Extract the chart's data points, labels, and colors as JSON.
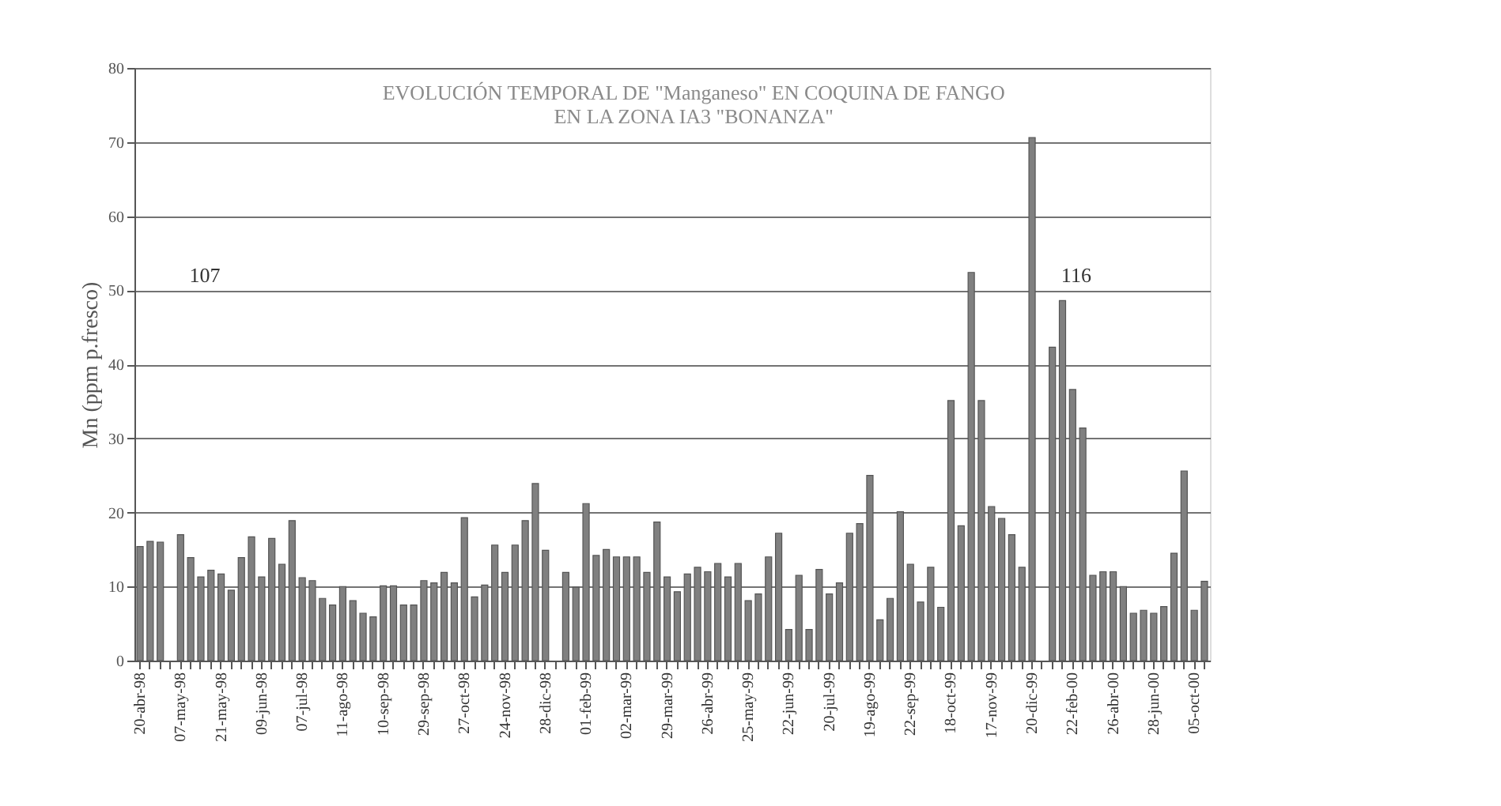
{
  "chart_data": {
    "type": "bar",
    "title": "EVOLUCIÓN TEMPORAL DE \"Manganeso\" EN COQUINA DE FANGO\nEN LA ZONA IA3 \"BONANZA\"",
    "ylabel": "Mn (ppm p.fresco)",
    "categories": [
      "20-abr-98",
      null,
      null,
      null,
      "07-may-98",
      null,
      null,
      null,
      "21-may-98",
      null,
      null,
      null,
      "09-jun-98",
      null,
      null,
      null,
      "07-jul-98",
      null,
      null,
      null,
      "11-ago-98",
      null,
      null,
      null,
      "10-sep-98",
      null,
      null,
      null,
      "29-sep-98",
      null,
      null,
      null,
      "27-oct-98",
      null,
      null,
      null,
      "24-nov-98",
      null,
      null,
      null,
      "28-dic-98",
      null,
      null,
      null,
      "01-feb-99",
      null,
      null,
      null,
      "02-mar-99",
      null,
      null,
      null,
      "29-mar-99",
      null,
      null,
      null,
      "26-abr-99",
      null,
      null,
      null,
      "25-may-99",
      null,
      null,
      null,
      "22-jun-99",
      null,
      null,
      null,
      "20-jul-99",
      null,
      null,
      null,
      "19-ago-99",
      null,
      null,
      null,
      "22-sep-99",
      null,
      null,
      null,
      "18-oct-99",
      null,
      null,
      null,
      "17-nov-99",
      null,
      null,
      null,
      "20-dic-99",
      null,
      null,
      null,
      "22-feb-00",
      null,
      null,
      null,
      "26-abr-00",
      null,
      null,
      null,
      "28-jun-00",
      null,
      null,
      null,
      "05-oct-00",
      null
    ],
    "values": [
      15.4,
      16.1,
      16,
      null,
      17,
      13.9,
      11.3,
      12.2,
      11.7,
      9.5,
      13.9,
      16.7,
      11.3,
      16.5,
      13,
      18.9,
      11.2,
      10.8,
      8.4,
      7.5,
      10,
      8.1,
      6.4,
      5.9,
      10.1,
      10.1,
      7.5,
      7.5,
      10.8,
      10.5,
      11.9,
      10.5,
      19.3,
      8.6,
      10.2,
      15.6,
      11.9,
      15.6,
      18.9,
      23.9,
      14.9,
      null,
      11.9,
      9.9,
      21.2,
      14.2,
      15,
      14,
      14,
      14,
      11.9,
      18.7,
      11.3,
      9.3,
      11.7,
      12.6,
      12,
      13.1,
      11.3,
      13.1,
      8.1,
      9,
      14,
      17.2,
      4.2,
      11.5,
      4.2,
      12.3,
      9,
      10.5,
      17.2,
      18.5,
      25,
      5.5,
      8.4,
      20.1,
      13,
      7.9,
      12.6,
      7.2,
      35.1,
      18.2,
      52.4,
      35.1,
      20.8,
      19.2,
      17,
      12.6,
      70.6,
      null,
      42.3,
      48.6,
      36.6,
      31.4,
      11.5,
      12,
      12,
      10,
      6.4,
      6.8,
      6.4,
      7.3,
      14.5,
      25.6,
      6.8,
      10.7
    ],
    "color": "#808080",
    "ylim": [
      0,
      80
    ],
    "yticks": [
      0,
      10,
      20,
      30,
      40,
      50,
      60,
      70,
      80
    ],
    "grid": "y",
    "value_labels": [
      null,
      null,
      null,
      "107",
      null,
      null,
      null,
      null,
      null,
      null,
      null,
      null,
      null,
      null,
      null,
      null,
      null,
      null,
      null,
      null,
      null,
      null,
      null,
      null,
      null,
      null,
      null,
      null,
      null,
      null,
      null,
      null,
      null,
      null,
      null,
      null,
      null,
      null,
      null,
      null,
      null,
      null,
      null,
      null,
      null,
      null,
      null,
      null,
      null,
      null,
      null,
      null,
      null,
      null,
      null,
      null,
      null,
      null,
      null,
      null,
      null,
      null,
      null,
      null,
      null,
      null,
      null,
      null,
      null,
      null,
      null,
      null,
      null,
      null,
      null,
      null,
      null,
      null,
      null,
      null,
      null,
      null,
      null,
      null,
      null,
      null,
      null,
      null,
      null,
      "116",
      null,
      null,
      null,
      null,
      null,
      null,
      null,
      null,
      null,
      null,
      null,
      null,
      null,
      null,
      null,
      null
    ]
  }
}
